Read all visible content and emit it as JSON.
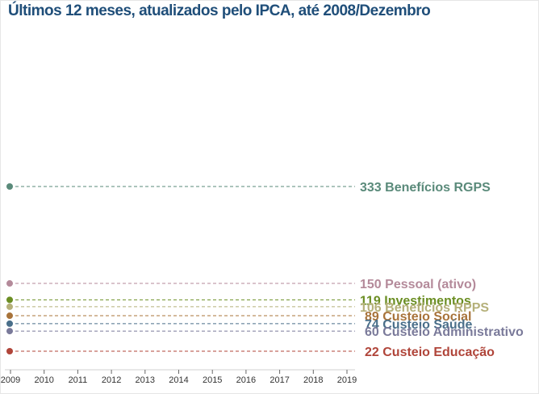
{
  "header": {
    "title": "Últimos 12 meses, atualizados pelo IPCA, até 2008/Dezembro"
  },
  "chart_data": {
    "type": "line",
    "title": "Últimos 12 meses, atualizados pelo IPCA, até 2008/Dezembro",
    "xlabel": "",
    "ylabel": "",
    "x_ticks": [
      "2009",
      "2010",
      "2011",
      "2012",
      "2013",
      "2014",
      "2015",
      "2016",
      "2017",
      "2018",
      "2019"
    ],
    "grid": false,
    "legend": "right, inline labels",
    "series": [
      {
        "name": "Benefícios RGPS",
        "value": 333,
        "label": "333 Benefícios RGPS",
        "color": "#5a8a7a"
      },
      {
        "name": "Pessoal (ativo)",
        "value": 150,
        "label": "150 Pessoal (ativo)",
        "color": "#b48a9a"
      },
      {
        "name": "Investimentos",
        "value": 119,
        "label": "119 Investimentos",
        "color": "#6b8e23"
      },
      {
        "name": "Benefícios RPPS",
        "value": 106,
        "label": "106 Benefícios RPPS",
        "color": "#b5b07a"
      },
      {
        "name": "Custeio Social",
        "value": 89,
        "label": "89 Custeio Social",
        "color": "#a8733a"
      },
      {
        "name": "Custeio Saúde",
        "value": 74,
        "label": "74 Custeio Saúde",
        "color": "#4a6f8a"
      },
      {
        "name": "Custeio Administrativo",
        "value": 60,
        "label": "60 Custeio Administrativo",
        "color": "#7a7a9a"
      },
      {
        "name": "Custeio Educação",
        "value": 22,
        "label": "22 Custeio Educação",
        "color": "#b0453a"
      }
    ]
  }
}
